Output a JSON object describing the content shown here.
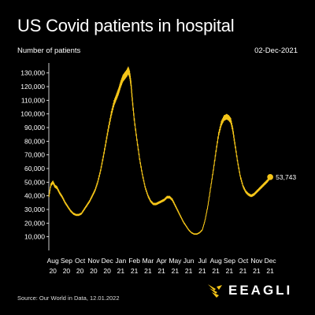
{
  "header": {
    "title": "US Covid patients in hospital",
    "subtitle": "Number of patients",
    "date": "02-Dec-2021"
  },
  "footer": {
    "source": "Source: Our World in Data, 12.01.2022",
    "logo_text": "EEAGLI"
  },
  "colors": {
    "background": "#000000",
    "line": "#f5c518",
    "text": "#ffffff"
  },
  "chart_data": {
    "type": "line",
    "title": "US Covid patients in hospital",
    "ylabel": "Number of patients",
    "ylim": [
      0,
      135000
    ],
    "yticks": [
      10000,
      20000,
      30000,
      40000,
      50000,
      60000,
      70000,
      80000,
      90000,
      100000,
      110000,
      120000,
      130000
    ],
    "ytick_labels": [
      "10,000",
      "20,000",
      "30,000",
      "40,000",
      "50,000",
      "60,000",
      "70,000",
      "80,000",
      "90,000",
      "100,000",
      "110,000",
      "120,000",
      "130,000"
    ],
    "xlim": [
      7.7,
      24.05
    ],
    "xticks": [
      {
        "pos": 8,
        "month": "Aug",
        "year": "20"
      },
      {
        "pos": 9,
        "month": "Sep",
        "year": "20"
      },
      {
        "pos": 10,
        "month": "Oct",
        "year": "20"
      },
      {
        "pos": 11,
        "month": "Nov",
        "year": "20"
      },
      {
        "pos": 12,
        "month": "Dec",
        "year": "20"
      },
      {
        "pos": 13,
        "month": "Jan",
        "year": "21"
      },
      {
        "pos": 14,
        "month": "Feb",
        "year": "21"
      },
      {
        "pos": 15,
        "month": "Mar",
        "year": "21"
      },
      {
        "pos": 16,
        "month": "Apr",
        "year": "21"
      },
      {
        "pos": 17,
        "month": "May",
        "year": "21"
      },
      {
        "pos": 18,
        "month": "Jun",
        "year": "21"
      },
      {
        "pos": 19,
        "month": "Jul",
        "year": "21"
      },
      {
        "pos": 20,
        "month": "Aug",
        "year": "21"
      },
      {
        "pos": 21,
        "month": "Sep",
        "year": "21"
      },
      {
        "pos": 22,
        "month": "Oct",
        "year": "21"
      },
      {
        "pos": 23,
        "month": "Nov",
        "year": "21"
      },
      {
        "pos": 24,
        "month": "Dec",
        "year": "21"
      }
    ],
    "series": [
      {
        "x": [
          7.7,
          7.85,
          8.0,
          8.15,
          8.3,
          8.5,
          8.7,
          8.9,
          9.1,
          9.3,
          9.5,
          9.7,
          9.9,
          10.1,
          10.3,
          10.5,
          10.7,
          10.9,
          11.1,
          11.3,
          11.5,
          11.7,
          11.9,
          12.1,
          12.3,
          12.5,
          12.7,
          12.85,
          13.0,
          13.15,
          13.3,
          13.45,
          13.55,
          13.65,
          13.75,
          13.85,
          14.0,
          14.2,
          14.4,
          14.6,
          14.8,
          15.0,
          15.2,
          15.4,
          15.6,
          15.8,
          16.0,
          16.2,
          16.4,
          16.6,
          16.8,
          17.0,
          17.2,
          17.4,
          17.6,
          17.8,
          18.0,
          18.2,
          18.4,
          18.6,
          18.8,
          19.0,
          19.2,
          19.4,
          19.6,
          19.8,
          20.0,
          20.2,
          20.4,
          20.6,
          20.8,
          20.95,
          21.1,
          21.25,
          21.4,
          21.6,
          21.8,
          22.0,
          22.2,
          22.4,
          22.6,
          22.8,
          23.0,
          23.2,
          23.4,
          23.6,
          23.8,
          24.0
        ],
        "y": [
          39000,
          48000,
          50000,
          47000,
          46000,
          42000,
          39000,
          35000,
          32000,
          29000,
          27000,
          26000,
          26000,
          27000,
          30000,
          33000,
          36000,
          40000,
          44000,
          50000,
          58000,
          68000,
          79000,
          90000,
          100000,
          108000,
          113000,
          117000,
          122000,
          126000,
          128000,
          130000,
          132000,
          129000,
          122000,
          110000,
          95000,
          80000,
          66000,
          55000,
          46000,
          40000,
          36000,
          34000,
          34000,
          35000,
          36000,
          37000,
          39000,
          39000,
          37000,
          33000,
          29000,
          25000,
          21000,
          18000,
          15000,
          13000,
          12000,
          12000,
          13000,
          15000,
          22000,
          32000,
          45000,
          58000,
          72000,
          85000,
          93000,
          97000,
          98000,
          97000,
          95000,
          88000,
          78000,
          65000,
          54000,
          47000,
          43000,
          41000,
          40000,
          41000,
          43000,
          45000,
          47000,
          49000,
          51000,
          53743
        ]
      }
    ],
    "end_label": "53,743"
  }
}
